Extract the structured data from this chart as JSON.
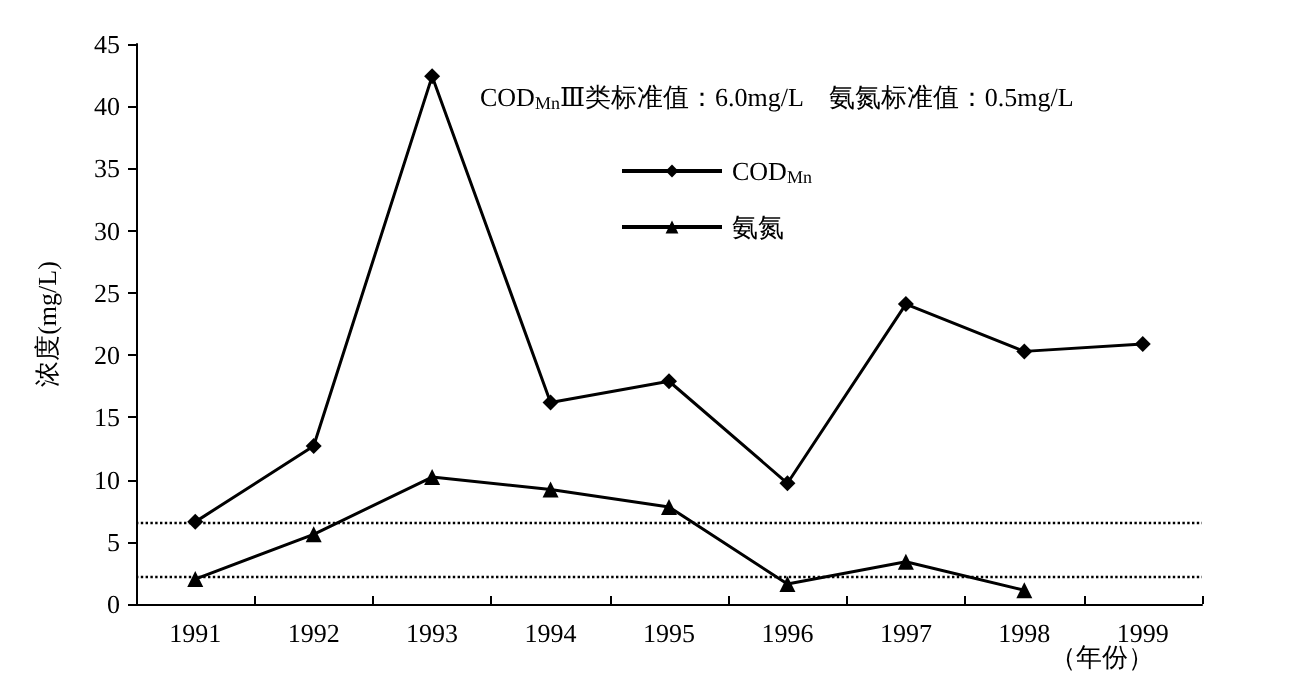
{
  "chart_data": {
    "type": "line",
    "ylabel": "浓度(mg/L)",
    "xlabel": "（年份）",
    "annotations": [
      "COD$_{Mn}$Ⅲ类标准值：6.0mg/L　氨氮标准值：0.5mg/L"
    ],
    "categories": [
      "1991",
      "1992",
      "1993",
      "1994",
      "1995",
      "1996",
      "1997",
      "1998",
      "1999"
    ],
    "series": [
      {
        "name": "COD$_{Mn}$",
        "color": "#000000",
        "marker": "diamond",
        "values": [
          6.6,
          12.7,
          42.4,
          16.2,
          17.9,
          9.7,
          24.1,
          20.3,
          20.9
        ]
      },
      {
        "name": "氨氮",
        "color": "#000000",
        "marker": "triangle",
        "values": [
          2.0,
          5.6,
          10.2,
          9.2,
          7.8,
          1.6,
          3.4,
          1.1,
          null
        ]
      }
    ],
    "ylim": [
      0,
      45
    ],
    "yticks": [
      0,
      5,
      10,
      15,
      20,
      25,
      30,
      35,
      40,
      45
    ],
    "ref_lines": [
      {
        "axis": "y",
        "value": 6.6,
        "line_style": "dotted",
        "color": "#000000"
      },
      {
        "axis": "y",
        "value": 2.2,
        "line_style": "dotted",
        "color": "#000000"
      }
    ],
    "grid": false,
    "legend": "top right",
    "line_style": "solid"
  }
}
